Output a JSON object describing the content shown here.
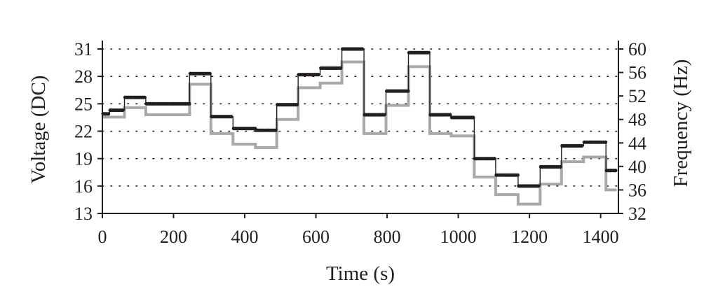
{
  "chart_data": {
    "type": "line",
    "title": "",
    "xlabel": "Time (s)",
    "ylabel": "Voltage (DC)",
    "y2label": "Frequency (Hz)",
    "xlim": [
      0,
      1450
    ],
    "ylim": [
      13,
      31
    ],
    "y2lim": [
      32,
      60
    ],
    "xticks": [
      0,
      200,
      400,
      600,
      800,
      1000,
      1200,
      1400
    ],
    "yticks": [
      13,
      16,
      19,
      22,
      25,
      28,
      31
    ],
    "y2ticks": [
      32,
      36,
      40,
      44,
      48,
      52,
      56,
      60
    ],
    "grid": "dotted-horizontal",
    "legend": "none",
    "colors": {
      "voltage": "#231f20",
      "frequency": "#a7a9ac",
      "axis": "#231f20"
    },
    "series": [
      {
        "axis": "left",
        "style": "dots",
        "steps": [
          {
            "x0": 0,
            "x1": 20,
            "y": 23.9
          },
          {
            "x0": 20,
            "x1": 62,
            "y": 24.3
          },
          {
            "x0": 62,
            "x1": 122,
            "y": 25.7
          },
          {
            "x0": 122,
            "x1": 245,
            "y": 25.0
          },
          {
            "x0": 245,
            "x1": 305,
            "y": 28.3
          },
          {
            "x0": 305,
            "x1": 367,
            "y": 23.6
          },
          {
            "x0": 367,
            "x1": 430,
            "y": 22.3
          },
          {
            "x0": 430,
            "x1": 490,
            "y": 22.1
          },
          {
            "x0": 490,
            "x1": 550,
            "y": 24.9
          },
          {
            "x0": 550,
            "x1": 612,
            "y": 28.2
          },
          {
            "x0": 612,
            "x1": 673,
            "y": 28.9
          },
          {
            "x0": 673,
            "x1": 735,
            "y": 31.0
          },
          {
            "x0": 735,
            "x1": 797,
            "y": 23.8
          },
          {
            "x0": 797,
            "x1": 860,
            "y": 26.4
          },
          {
            "x0": 860,
            "x1": 920,
            "y": 30.6
          },
          {
            "x0": 920,
            "x1": 980,
            "y": 23.8
          },
          {
            "x0": 980,
            "x1": 1045,
            "y": 23.5
          },
          {
            "x0": 1045,
            "x1": 1105,
            "y": 19.0
          },
          {
            "x0": 1105,
            "x1": 1168,
            "y": 17.2
          },
          {
            "x0": 1168,
            "x1": 1230,
            "y": 16.0
          },
          {
            "x0": 1230,
            "x1": 1290,
            "y": 18.1
          },
          {
            "x0": 1290,
            "x1": 1352,
            "y": 20.4
          },
          {
            "x0": 1352,
            "x1": 1415,
            "y": 20.8
          },
          {
            "x0": 1415,
            "x1": 1445,
            "y": 17.7
          }
        ]
      },
      {
        "axis": "right",
        "style": "step-line",
        "steps": [
          {
            "x0": 0,
            "x1": 62,
            "y": 48.4
          },
          {
            "x0": 62,
            "x1": 122,
            "y": 50.0
          },
          {
            "x0": 122,
            "x1": 245,
            "y": 48.8
          },
          {
            "x0": 245,
            "x1": 305,
            "y": 54.0
          },
          {
            "x0": 305,
            "x1": 367,
            "y": 45.6
          },
          {
            "x0": 367,
            "x1": 430,
            "y": 43.8
          },
          {
            "x0": 430,
            "x1": 490,
            "y": 43.2
          },
          {
            "x0": 490,
            "x1": 550,
            "y": 48.0
          },
          {
            "x0": 550,
            "x1": 612,
            "y": 53.4
          },
          {
            "x0": 612,
            "x1": 673,
            "y": 54.2
          },
          {
            "x0": 673,
            "x1": 735,
            "y": 57.8
          },
          {
            "x0": 735,
            "x1": 797,
            "y": 45.6
          },
          {
            "x0": 797,
            "x1": 860,
            "y": 50.4
          },
          {
            "x0": 860,
            "x1": 920,
            "y": 57.0
          },
          {
            "x0": 920,
            "x1": 980,
            "y": 45.6
          },
          {
            "x0": 980,
            "x1": 1045,
            "y": 45.2
          },
          {
            "x0": 1045,
            "x1": 1105,
            "y": 38.2
          },
          {
            "x0": 1105,
            "x1": 1168,
            "y": 35.2
          },
          {
            "x0": 1168,
            "x1": 1230,
            "y": 33.6
          },
          {
            "x0": 1230,
            "x1": 1290,
            "y": 37.0
          },
          {
            "x0": 1290,
            "x1": 1352,
            "y": 40.8
          },
          {
            "x0": 1352,
            "x1": 1415,
            "y": 41.6
          },
          {
            "x0": 1415,
            "x1": 1445,
            "y": 36.0
          }
        ]
      }
    ]
  }
}
